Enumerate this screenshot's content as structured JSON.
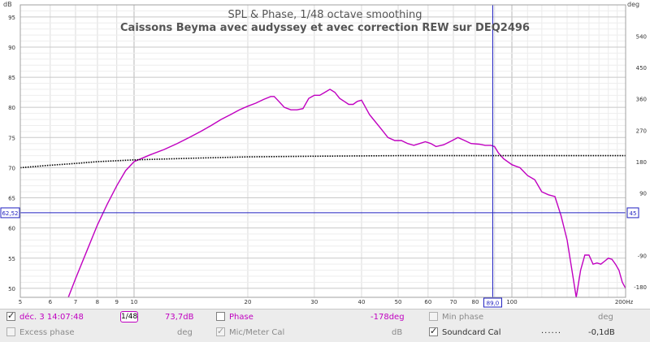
{
  "chart_data": {
    "type": "line",
    "title": "SPL & Phase, 1/48 octave smoothing",
    "subtitle": "Caissons Beyma avec audyssey et avec correction REW sur DEQ2496",
    "x_scale": "log",
    "xlim": [
      5,
      200
    ],
    "ylim": [
      48.5,
      97
    ],
    "y2lim": [
      -210,
      630
    ],
    "x_ticks": [
      5,
      6,
      7,
      8,
      9,
      10,
      20,
      30,
      40,
      50,
      60,
      70,
      80,
      100,
      200
    ],
    "x_tick_labels": [
      "5",
      "6",
      "7",
      "8",
      "9",
      "10",
      "20",
      "30",
      "40",
      "50",
      "60",
      "70",
      "80",
      "100",
      "200Hz"
    ],
    "y_ticks": [
      50,
      55,
      60,
      65,
      70,
      75,
      80,
      85,
      90,
      95
    ],
    "y2_ticks": [
      -180,
      -90,
      90,
      180,
      270,
      360,
      450,
      540
    ],
    "y2_unit": "deg",
    "y_unit": "dB",
    "grid": true,
    "cursor": {
      "x": 89.0,
      "x_label": "89,0",
      "y": 62.52,
      "y_label": "62,52",
      "y2_label": "45"
    },
    "series": [
      {
        "name": "SPL",
        "color": "#c000c0",
        "points": [
          [
            6.7,
            48.5
          ],
          [
            7.0,
            51.6
          ],
          [
            7.5,
            56.2
          ],
          [
            8.0,
            60.5
          ],
          [
            8.5,
            64.0
          ],
          [
            9.0,
            67.0
          ],
          [
            9.5,
            69.5
          ],
          [
            10.0,
            71.0
          ],
          [
            11,
            72.1
          ],
          [
            12,
            73.0
          ],
          [
            13,
            74.0
          ],
          [
            14,
            75.0
          ],
          [
            15,
            76.0
          ],
          [
            16,
            77.0
          ],
          [
            17,
            78.0
          ],
          [
            18,
            78.8
          ],
          [
            19,
            79.6
          ],
          [
            20,
            80.2
          ],
          [
            21,
            80.7
          ],
          [
            22,
            81.3
          ],
          [
            23,
            81.8
          ],
          [
            23.5,
            81.8
          ],
          [
            24,
            81.2
          ],
          [
            25,
            80.0
          ],
          [
            26,
            79.6
          ],
          [
            27,
            79.6
          ],
          [
            28,
            79.8
          ],
          [
            29,
            81.5
          ],
          [
            30,
            82.0
          ],
          [
            31,
            82.0
          ],
          [
            32,
            82.5
          ],
          [
            33,
            83.0
          ],
          [
            34,
            82.5
          ],
          [
            35,
            81.5
          ],
          [
            36,
            81.0
          ],
          [
            37,
            80.5
          ],
          [
            38,
            80.5
          ],
          [
            39,
            81.0
          ],
          [
            40,
            81.2
          ],
          [
            41,
            80.0
          ],
          [
            42,
            78.8
          ],
          [
            43,
            78.0
          ],
          [
            45,
            76.5
          ],
          [
            47,
            75.0
          ],
          [
            49,
            74.5
          ],
          [
            51,
            74.5
          ],
          [
            53,
            74.0
          ],
          [
            55,
            73.7
          ],
          [
            57,
            74.0
          ],
          [
            59,
            74.3
          ],
          [
            61,
            74.0
          ],
          [
            63,
            73.5
          ],
          [
            66,
            73.8
          ],
          [
            69,
            74.4
          ],
          [
            72,
            75.0
          ],
          [
            75,
            74.5
          ],
          [
            78,
            74.0
          ],
          [
            82,
            73.9
          ],
          [
            85,
            73.7
          ],
          [
            88,
            73.7
          ],
          [
            90,
            73.5
          ],
          [
            92,
            72.5
          ],
          [
            95,
            71.5
          ],
          [
            100,
            70.5
          ],
          [
            105,
            70.0
          ],
          [
            110,
            68.7
          ],
          [
            115,
            68.0
          ],
          [
            120,
            66.0
          ],
          [
            125,
            65.5
          ],
          [
            130,
            65.2
          ],
          [
            135,
            62.0
          ],
          [
            140,
            58.0
          ],
          [
            145,
            52.0
          ],
          [
            148,
            48.5
          ],
          [
            152,
            53.0
          ],
          [
            156,
            55.5
          ],
          [
            160,
            55.5
          ],
          [
            164,
            54.0
          ],
          [
            168,
            54.2
          ],
          [
            172,
            54.0
          ],
          [
            176,
            54.5
          ],
          [
            180,
            55.0
          ],
          [
            184,
            54.8
          ],
          [
            188,
            54.0
          ],
          [
            192,
            53.0
          ],
          [
            196,
            51.0
          ],
          [
            200,
            50.0
          ]
        ]
      },
      {
        "name": "Phase",
        "color": "#000000",
        "dashed": true,
        "points": [
          [
            5,
            70.0
          ],
          [
            6,
            70.4
          ],
          [
            7,
            70.7
          ],
          [
            8,
            71.0
          ],
          [
            10,
            71.3
          ],
          [
            15,
            71.6
          ],
          [
            20,
            71.8
          ],
          [
            30,
            71.9
          ],
          [
            50,
            72.0
          ],
          [
            100,
            72.0
          ],
          [
            200,
            72.0
          ]
        ]
      }
    ]
  },
  "legend": {
    "row1": {
      "spl_checked": true,
      "spl_label": "déc. 3 14:07:48",
      "smoothing": "1/48",
      "spl_value": "73,7dB",
      "phase_label": "Phase",
      "phase_value": "-178deg",
      "minphase_label": "Min phase",
      "minphase_unit": "deg"
    },
    "row2": {
      "excess_label": "Excess phase",
      "excess_unit": "deg",
      "mic_label": "Mic/Meter Cal",
      "mic_unit": "dB",
      "sc_label": "Soundcard Cal",
      "sc_value": "-0,1dB"
    }
  }
}
